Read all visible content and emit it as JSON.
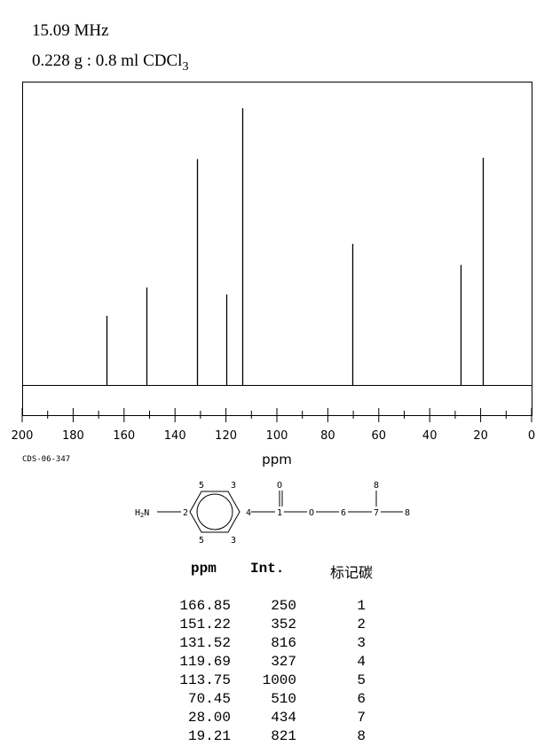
{
  "header": {
    "frequency": "15.09 MHz",
    "sample_main": "0.228 g : 0.8 ml CDCl",
    "sample_sub": "3"
  },
  "code_label": "CDS-06-347",
  "chart_data": {
    "type": "bar",
    "xlabel": "ppm",
    "xlim": [
      200,
      0
    ],
    "xticks": [
      "200",
      "180",
      "160",
      "140",
      "120",
      "100",
      "80",
      "60",
      "40",
      "20",
      "0"
    ],
    "peaks": [
      {
        "ppm": 166.85,
        "intensity": 250
      },
      {
        "ppm": 151.22,
        "intensity": 352
      },
      {
        "ppm": 131.52,
        "intensity": 816
      },
      {
        "ppm": 119.69,
        "intensity": 327
      },
      {
        "ppm": 113.75,
        "intensity": 1000
      },
      {
        "ppm": 70.45,
        "intensity": 510
      },
      {
        "ppm": 28.0,
        "intensity": 434
      },
      {
        "ppm": 19.21,
        "intensity": 821
      }
    ]
  },
  "structure": {
    "nh2_label": "H",
    "nh2_sub": "2",
    "nh2_n": "N",
    "labels": [
      "2",
      "3",
      "5",
      "3",
      "5",
      "4",
      "1",
      "O",
      "O",
      "6",
      "7",
      "8",
      "8"
    ]
  },
  "table": {
    "headers": [
      "ppm",
      "Int.",
      "标记碳"
    ],
    "rows": [
      [
        "166.85",
        "250",
        "1"
      ],
      [
        "151.22",
        "352",
        "2"
      ],
      [
        "131.52",
        "816",
        "3"
      ],
      [
        "119.69",
        "327",
        "4"
      ],
      [
        "113.75",
        "1000",
        "5"
      ],
      [
        "70.45",
        "510",
        "6"
      ],
      [
        "28.00",
        "434",
        "7"
      ],
      [
        "19.21",
        "821",
        "8"
      ]
    ]
  }
}
